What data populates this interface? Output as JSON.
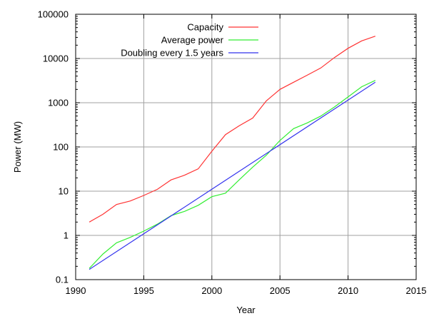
{
  "chart_data": {
    "type": "line",
    "title": "",
    "xlabel": "Year",
    "ylabel": "Power (MW)",
    "xlim": [
      1990,
      2015
    ],
    "ylim": [
      0.1,
      100000
    ],
    "yscale": "log",
    "grid": true,
    "legend_position": "top-left",
    "x_ticks": [
      1990,
      1995,
      2000,
      2005,
      2010,
      2015
    ],
    "x_tick_labels": [
      "1990",
      "1995",
      "2000",
      "2005",
      "2010",
      "2015"
    ],
    "y_ticks": [
      0.1,
      1,
      10,
      100,
      1000,
      10000,
      100000
    ],
    "y_tick_labels": [
      "0.1",
      "1",
      "10",
      "100",
      "1000",
      "10000",
      "100000"
    ],
    "series": [
      {
        "name": "Capacity",
        "color": "#ff3333",
        "x": [
          1991,
          1992,
          1993,
          1994,
          1995,
          1996,
          1997,
          1998,
          1999,
          2000,
          2001,
          2002,
          2003,
          2004,
          2005,
          2006,
          2007,
          2008,
          2009,
          2010,
          2011,
          2012
        ],
        "y": [
          2,
          3,
          5,
          6,
          8,
          11,
          18,
          23,
          32,
          80,
          190,
          300,
          450,
          1100,
          2000,
          2900,
          4200,
          6100,
          10500,
          17000,
          25000,
          32000
        ]
      },
      {
        "name": "Average power",
        "color": "#33ee33",
        "x": [
          1991,
          1992,
          1993,
          1994,
          1995,
          1996,
          1997,
          1998,
          1999,
          2000,
          2001,
          2002,
          2003,
          2004,
          2005,
          2006,
          2007,
          2008,
          2009,
          2010,
          2011,
          2012
        ],
        "y": [
          0.18,
          0.38,
          0.68,
          0.9,
          1.25,
          1.8,
          2.8,
          3.5,
          4.8,
          7.5,
          9,
          18,
          35,
          65,
          140,
          260,
          350,
          500,
          800,
          1350,
          2300,
          3200
        ]
      },
      {
        "name": "Doubling every 1.5 years",
        "color": "#3333ee",
        "x": [
          1991,
          2012
        ],
        "y": [
          0.17,
          2900
        ]
      }
    ]
  }
}
